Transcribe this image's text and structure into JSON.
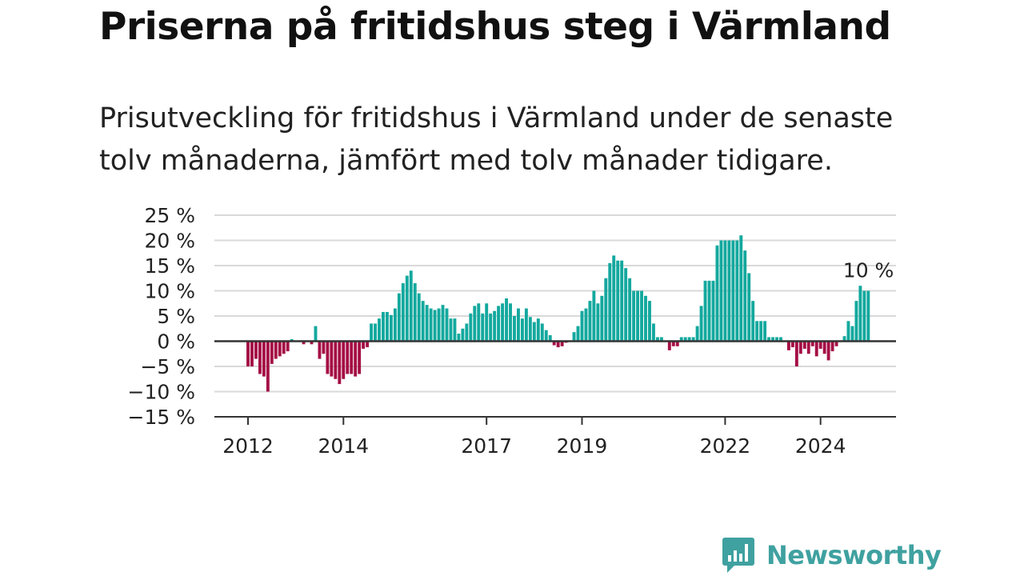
{
  "title": "Priserna på fritidshus steg i Värmland",
  "subtitle": "Prisutveckling för fritidshus i Värmland under de senaste tolv månaderna, jämfört med tolv månader tidigare.",
  "brand": "Newsworthy",
  "colors": {
    "positive": "#13a89e",
    "negative": "#a50f45",
    "grid": "#d9d9d9",
    "axis": "#333333",
    "brand": "#3fa1a0"
  },
  "chart_data": {
    "type": "bar",
    "last_label": "10 %",
    "ylim": [
      -15,
      25
    ],
    "yticks": [
      25,
      20,
      15,
      10,
      5,
      0,
      -5,
      -10,
      -15
    ],
    "ytick_labels": [
      "25 %",
      "20 %",
      "15 %",
      "10 %",
      "5 %",
      "0 %",
      "−5 %",
      "−10 %",
      "−15 %"
    ],
    "xticks": [
      {
        "label": "2012",
        "index": 0
      },
      {
        "label": "2014",
        "index": 24
      },
      {
        "label": "2017",
        "index": 60
      },
      {
        "label": "2019",
        "index": 84
      },
      {
        "label": "2022",
        "index": 120
      },
      {
        "label": "2024",
        "index": 144
      }
    ],
    "values": [
      -5,
      -5,
      -3.5,
      -6.5,
      -7,
      -10,
      -4.5,
      -3.5,
      -3,
      -2.5,
      -2,
      0.4,
      0,
      0,
      -0.6,
      0,
      -0.6,
      3,
      -3.5,
      -2.5,
      -6.5,
      -7,
      -7.5,
      -8.5,
      -7.5,
      -6.5,
      -6.5,
      -7,
      -6.5,
      -1.5,
      -1.2,
      3.5,
      3.5,
      4.5,
      5.8,
      5.8,
      5.2,
      6.5,
      9.5,
      11.5,
      13,
      14,
      11.5,
      9.5,
      8,
      7.2,
      6.5,
      6.2,
      6.5,
      7.2,
      6.5,
      4.5,
      4.5,
      1.5,
      2.5,
      3.5,
      5.5,
      7,
      7.5,
      5.5,
      7.5,
      5.5,
      6,
      7,
      7.5,
      8.5,
      7.5,
      5,
      6.5,
      4.5,
      6.5,
      4.8,
      3.8,
      4.5,
      3.5,
      2.2,
      1.2,
      -0.8,
      -1.2,
      -1,
      -0.3,
      0,
      1.8,
      3,
      6,
      6.5,
      8,
      10,
      7.5,
      9,
      12.5,
      15.5,
      17,
      16,
      16,
      14.5,
      12.5,
      10,
      10,
      10,
      9,
      8,
      3.5,
      0.8,
      0.8,
      0,
      -1.8,
      -1,
      -1,
      0.8,
      0.8,
      0.8,
      0.8,
      3,
      7,
      12,
      12,
      12,
      19,
      20,
      20,
      20,
      20,
      20,
      21,
      18,
      13.5,
      8,
      4,
      4,
      4,
      0.8,
      0.8,
      0.8,
      0.8,
      0,
      -1.8,
      -1.2,
      -5,
      -2.5,
      -1.5,
      -2.5,
      -1,
      -3,
      -1.5,
      -2.5,
      -3.8,
      -2,
      -1,
      0,
      1,
      4,
      3,
      8,
      11,
      10,
      10
    ]
  }
}
